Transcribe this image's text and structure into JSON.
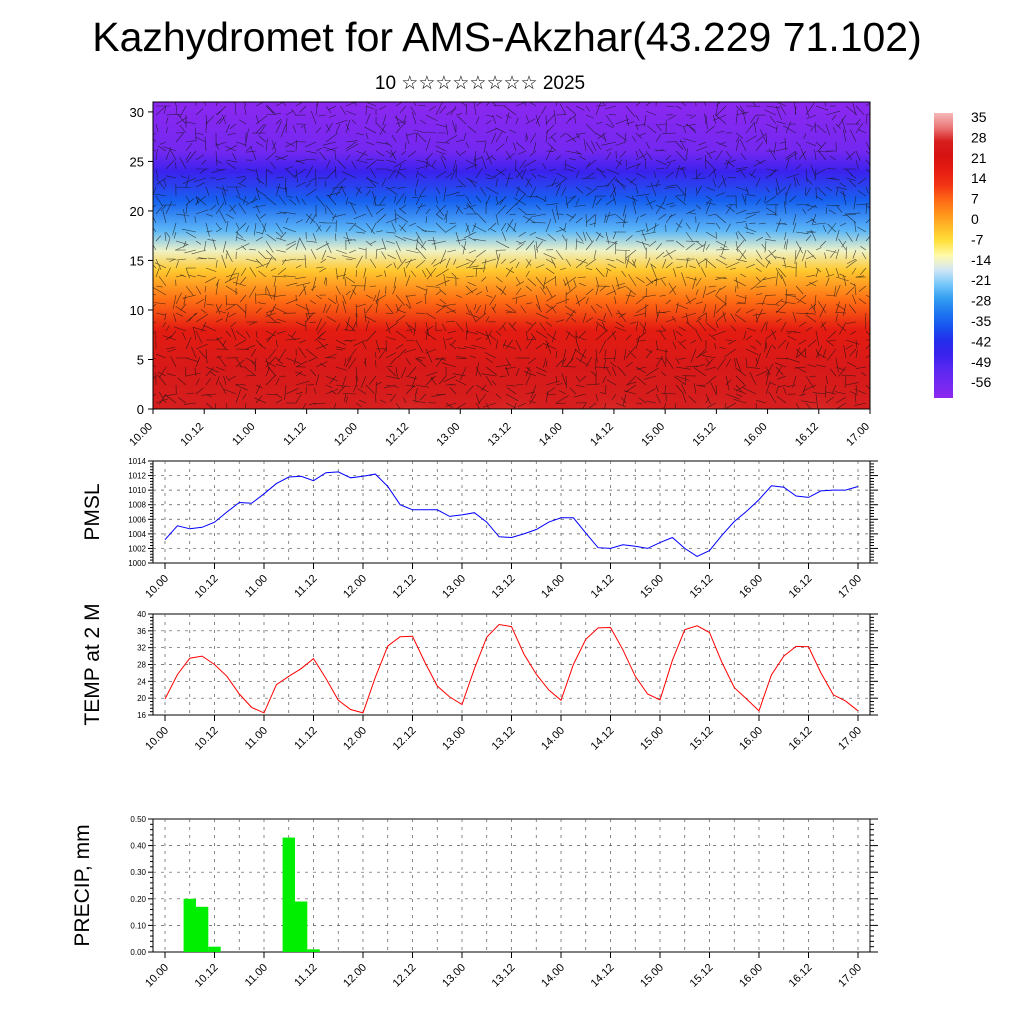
{
  "title": "Kazhydromet for AMS-Akzhar(43.229 71.102)",
  "subtitle": "10 ☆☆☆☆☆☆☆☆ 2025",
  "chart_data": [
    {
      "type": "heatmap",
      "description_of_mark": "cross-section temperature colour field with wind vectors",
      "x_ticks": [
        "10.00",
        "10.12",
        "11.00",
        "11.12",
        "12.00",
        "12.12",
        "13.00",
        "13.12",
        "14.00",
        "14.12",
        "15.00",
        "15.12",
        "16.00",
        "16.12",
        "17.00"
      ],
      "y_ticks": [
        0,
        5,
        10,
        15,
        20,
        25,
        30
      ],
      "ylim": [
        0,
        31
      ],
      "colorbar": {
        "labels": [
          "35",
          "28",
          "21",
          "14",
          "7",
          "0",
          "-7",
          "-14",
          "-21",
          "-28",
          "-35",
          "-42",
          "-49",
          "-56"
        ],
        "range": [
          -60,
          40
        ]
      },
      "level_temps": [
        {
          "height": 0,
          "temp": 30
        },
        {
          "height": 4,
          "temp": 28
        },
        {
          "height": 8,
          "temp": 20
        },
        {
          "height": 11,
          "temp": 9
        },
        {
          "height": 14,
          "temp": -2
        },
        {
          "height": 16,
          "temp": -12
        },
        {
          "height": 18,
          "temp": -22
        },
        {
          "height": 21,
          "temp": -33
        },
        {
          "height": 24,
          "temp": -45
        },
        {
          "height": 26,
          "temp": -55
        },
        {
          "height": 31,
          "temp": -60
        }
      ],
      "warm_bubbles_day": [
        12.5,
        13.5,
        14.5,
        15.5,
        16.5
      ]
    },
    {
      "type": "line",
      "ylabel": "PMSL",
      "ylim": [
        1000,
        1014
      ],
      "y_ticks": [
        "1000",
        "1002",
        "1004",
        "1006",
        "1008",
        "1010",
        "1012",
        "1014"
      ],
      "x_ticks": [
        "10.00",
        "10.12",
        "11.00",
        "11.12",
        "12.00",
        "12.12",
        "13.00",
        "13.12",
        "14.00",
        "14.12",
        "15.00",
        "15.12",
        "16.00",
        "16.12",
        "17.00"
      ],
      "color": "#0000ff",
      "values": [
        1003.2,
        1005.1,
        1004.7,
        1004.9,
        1005.6,
        1007.0,
        1008.3,
        1008.2,
        1009.5,
        1010.9,
        1011.8,
        1011.9,
        1011.3,
        1012.4,
        1012.5,
        1011.7,
        1011.9,
        1012.2,
        1010.5,
        1008.0,
        1007.3,
        1007.3,
        1007.3,
        1006.4,
        1006.6,
        1006.9,
        1005.6,
        1003.6,
        1003.5,
        1004.0,
        1004.6,
        1005.6,
        1006.2,
        1006.2,
        1004.1,
        1002.1,
        1002.0,
        1002.5,
        1002.3,
        1002.0,
        1002.8,
        1003.5,
        1002.0,
        1000.9,
        1001.7,
        1003.8,
        1005.7,
        1007.1,
        1008.7,
        1010.6,
        1010.4,
        1009.2,
        1009.0,
        1009.9,
        1010.0,
        1010.0,
        1010.5
      ]
    },
    {
      "type": "line",
      "ylabel": "TEMP at 2 M",
      "ylim": [
        16,
        40
      ],
      "y_ticks": [
        "16",
        "20",
        "24",
        "28",
        "32",
        "36",
        "40"
      ],
      "x_ticks": [
        "10.00",
        "10.12",
        "11.00",
        "11.12",
        "12.00",
        "12.12",
        "13.00",
        "13.12",
        "14.00",
        "14.12",
        "15.00",
        "15.12",
        "16.00",
        "16.12",
        "17.00"
      ],
      "color": "#ff0000",
      "values": [
        19.8,
        25.6,
        29.5,
        30.0,
        28.0,
        25.2,
        21.0,
        17.8,
        16.5,
        23.2,
        25.2,
        27.0,
        29.4,
        24.7,
        19.5,
        17.3,
        16.5,
        25.0,
        32.4,
        34.6,
        34.7,
        28.5,
        22.9,
        20.3,
        18.5,
        27.0,
        34.5,
        37.5,
        37.0,
        30.5,
        25.7,
        22.0,
        19.5,
        28.0,
        34.0,
        36.7,
        36.8,
        31.5,
        25.2,
        21.0,
        19.6,
        29.0,
        36.3,
        37.2,
        35.6,
        28.5,
        22.5,
        19.8,
        17.0,
        25.5,
        30.0,
        32.3,
        32.2,
        26.0,
        20.8,
        19.3,
        17.0
      ]
    },
    {
      "type": "bar",
      "ylabel": "PRECIP, mm",
      "ylim": [
        0,
        0.5
      ],
      "y_ticks": [
        "0.00",
        "0.10",
        "0.20",
        "0.30",
        "0.40",
        "0.50"
      ],
      "x_ticks": [
        "10.00",
        "10.12",
        "11.00",
        "11.12",
        "12.00",
        "12.12",
        "13.00",
        "13.12",
        "14.00",
        "14.12",
        "15.00",
        "15.12",
        "16.00",
        "16.12",
        "17.00"
      ],
      "color": "#00ee00",
      "bars": [
        {
          "day": 10.25,
          "value": 0.2
        },
        {
          "day": 10.375,
          "value": 0.17
        },
        {
          "day": 10.5,
          "value": 0.02
        },
        {
          "day": 11.25,
          "value": 0.43
        },
        {
          "day": 11.375,
          "value": 0.19
        },
        {
          "day": 11.5,
          "value": 0.01
        }
      ]
    }
  ]
}
